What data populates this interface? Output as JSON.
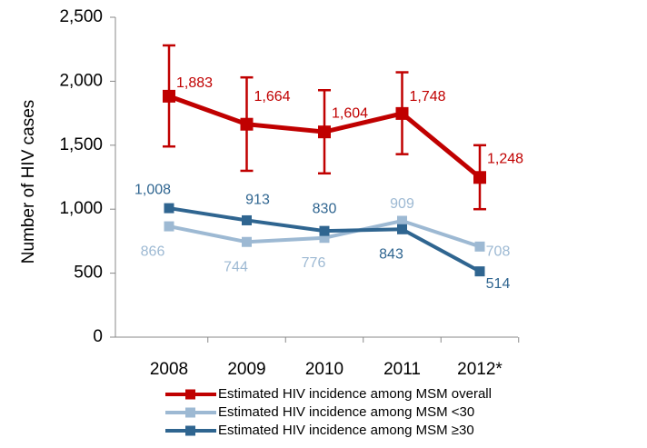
{
  "chart_data": {
    "type": "line",
    "y_label": "Number of HIV cases",
    "categories": [
      "2008",
      "2009",
      "2010",
      "2011",
      "2012*"
    ],
    "ylim": [
      0,
      2500
    ],
    "yticks": [
      0,
      500,
      {
        "value": 1000,
        "label": "1,000"
      },
      {
        "value": 1500,
        "label": "1,500"
      },
      {
        "value": 2000,
        "label": "2,000"
      },
      {
        "value": 2500,
        "label": "2,500"
      }
    ],
    "grid": false,
    "legend": "bottom",
    "series": [
      {
        "name": "Estimated HIV incidence among MSM overall",
        "color": "#c00000",
        "values": [
          1883,
          1664,
          1604,
          1748,
          1248
        ],
        "value_labels": [
          "1,883",
          "1,664",
          "1,604",
          "1,748",
          "1,248"
        ],
        "error_low": [
          1490,
          1300,
          1280,
          1430,
          1000
        ],
        "error_high": [
          2280,
          2030,
          1930,
          2070,
          1500
        ]
      },
      {
        "name": "Estimated HIV incidence among MSM <30",
        "color": "#9db9d3",
        "values": [
          866,
          744,
          776,
          909,
          708
        ]
      },
      {
        "name": "Estimated HIV incidence among MSM ≥30",
        "color": "#2f6590",
        "values": [
          1008,
          913,
          830,
          843,
          514
        ],
        "value_labels": [
          "1,008",
          "913",
          "830",
          "843",
          "514"
        ]
      }
    ]
  }
}
